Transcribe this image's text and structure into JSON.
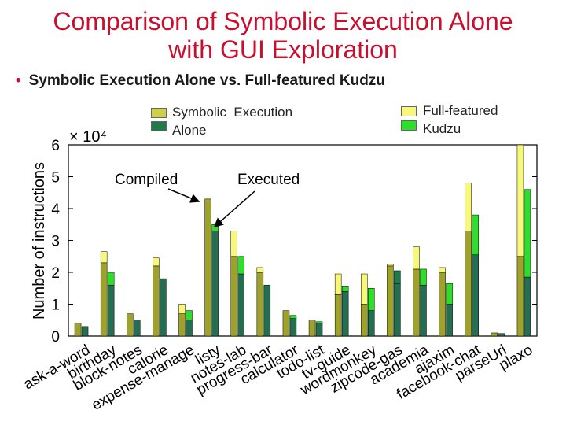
{
  "slide": {
    "title_line1": "Comparison of Symbolic Execution Alone",
    "title_line2": "with GUI Exploration",
    "bullet": "Symbolic Execution Alone vs. Full-featured Kudzu"
  },
  "colors": {
    "title": "#c8102e",
    "sym_compiled": "#cfd04a",
    "sym_executed": "#1f7a4c",
    "kudzu_compiled": "#f7f77a",
    "kudzu_executed": "#2ce02a",
    "overlap_compiled": "#9ea22a",
    "overlap_executed": "#246e52"
  },
  "chart_data": {
    "type": "bar",
    "ylabel": "Number of instructions",
    "scale_label": "× 10⁴",
    "ylim": [
      0,
      6
    ],
    "yticks": [
      0,
      1,
      2,
      3,
      4,
      5,
      6
    ],
    "legend": {
      "symbolic_line1": "Symbolic  Execution",
      "symbolic_line2": "Alone",
      "kudzu_line1": "Full-featured",
      "kudzu_line2": "Kudzu"
    },
    "annotations": {
      "compiled": "Compiled",
      "executed": "Executed"
    },
    "categories": [
      "ask-a-word",
      "birthday",
      "block-notes",
      "calorie",
      "expense-manage",
      "listy",
      "notes-lab",
      "progress-bar",
      "calculator",
      "todo-list",
      "tv-guide",
      "wordmonkey",
      "zipcode-gas",
      "academia",
      "ajaxim",
      "facebook-chat",
      "parseUri",
      "plaxo"
    ],
    "series": [
      {
        "name": "Symbolic Execution Alone compiled",
        "values": [
          0.4,
          2.3,
          0.7,
          2.2,
          0.7,
          4.3,
          2.5,
          2.0,
          0.8,
          0.5,
          1.3,
          1.0,
          2.2,
          2.1,
          2.0,
          3.3,
          0.1,
          2.5
        ]
      },
      {
        "name": "Symbolic Execution Alone executed",
        "values": [
          0.3,
          1.6,
          0.5,
          1.8,
          0.5,
          3.3,
          1.95,
          1.6,
          0.55,
          0.4,
          1.4,
          0.8,
          2.05,
          1.6,
          1.0,
          2.55,
          0.07,
          1.85
        ]
      },
      {
        "name": "Full-featured Kudzu compiled",
        "values": [
          0.4,
          2.65,
          0.7,
          2.45,
          1.0,
          4.3,
          3.3,
          2.15,
          0.8,
          0.5,
          1.95,
          1.95,
          2.25,
          2.8,
          2.15,
          4.8,
          0.1,
          6.0
        ]
      },
      {
        "name": "Full-featured Kudzu executed",
        "values": [
          0.3,
          2.0,
          0.5,
          1.8,
          0.8,
          3.5,
          2.5,
          1.6,
          0.65,
          0.45,
          1.55,
          1.5,
          1.65,
          2.1,
          1.65,
          3.8,
          0.08,
          4.6
        ]
      }
    ]
  }
}
